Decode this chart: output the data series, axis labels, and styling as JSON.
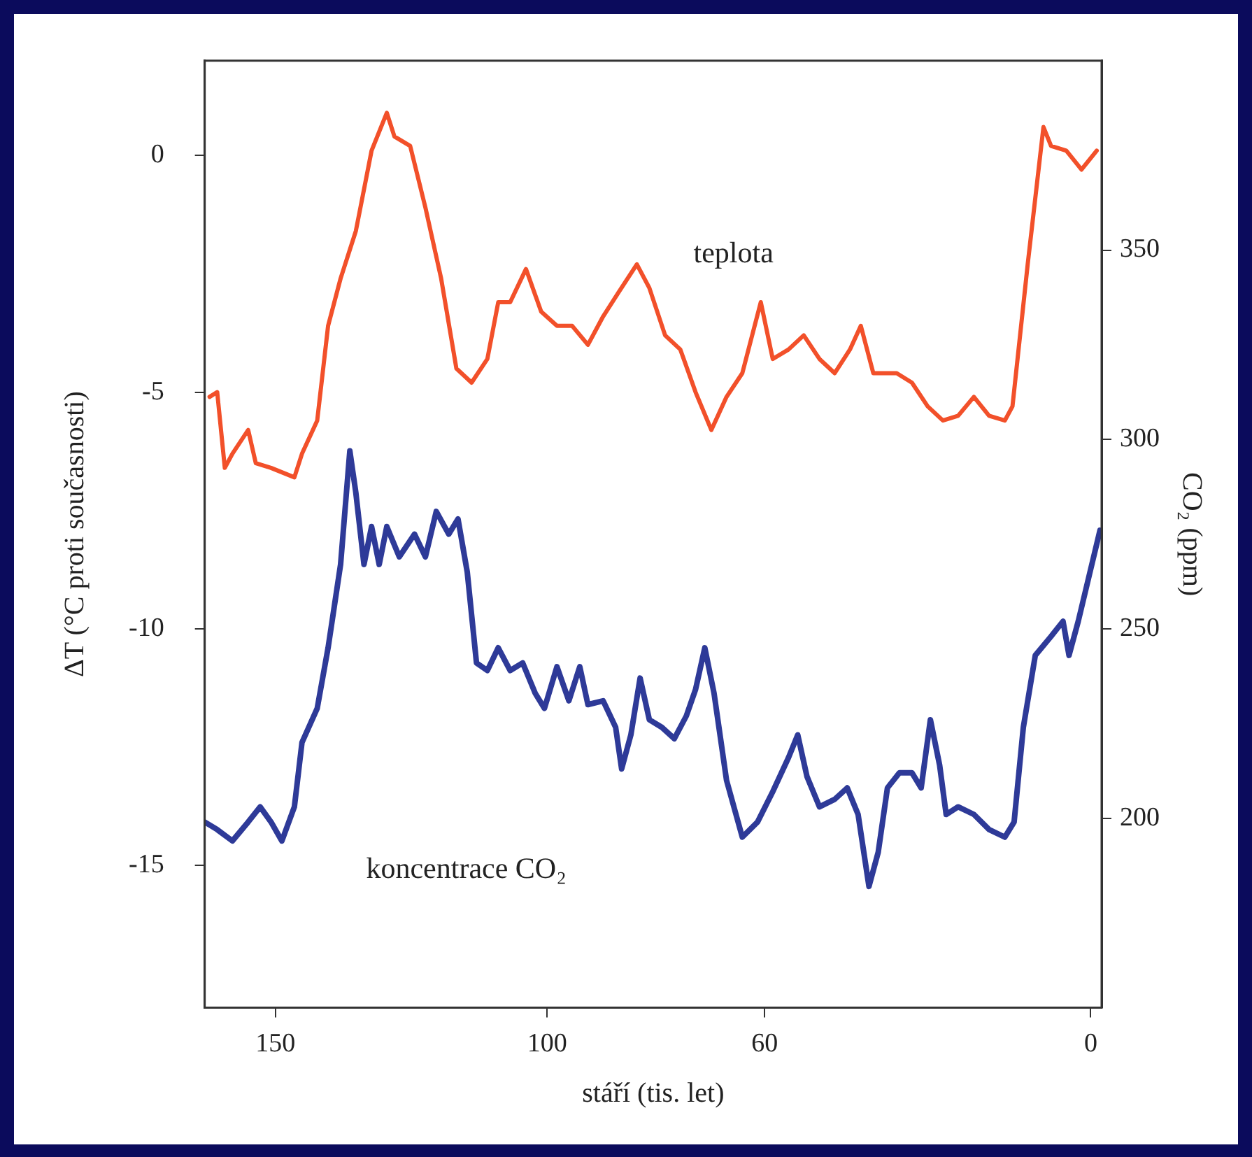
{
  "chart_data": {
    "type": "line",
    "xlabel": "stáří (tis. let)",
    "ylabel": "ΔT (°C proti současnosti)",
    "y2label": "CO₂ (ppm)",
    "xlim": [
      163,
      -2
    ],
    "xticks": [
      150,
      100,
      60,
      0
    ],
    "ylim": [
      -18,
      2
    ],
    "yticks": [
      -15,
      -10,
      -5,
      0
    ],
    "y2lim": [
      150,
      400
    ],
    "y2ticks": [
      200,
      250,
      300,
      350
    ],
    "grid": false,
    "legend": false,
    "marker": "none",
    "line_style": "solid",
    "series": [
      {
        "name": "teplota",
        "color": "#f2502a",
        "x": [
          162.1,
          160.7,
          159.3,
          157.9,
          155.0,
          153.6,
          150.8,
          146.5,
          145.1,
          142.3,
          140.3,
          138.0,
          135.2,
          132.3,
          129.5,
          128.1,
          125.2,
          122.4,
          119.5,
          116.7,
          113.9,
          111.0,
          109.0,
          106.8,
          103.9,
          101.1,
          98.2,
          95.4,
          92.5,
          89.7,
          86.9,
          83.5,
          81.2,
          78.3,
          75.5,
          72.7,
          69.8,
          67.0,
          64.1,
          60.7,
          58.5,
          55.6,
          52.8,
          49.9,
          47.1,
          44.3,
          42.3,
          40.0,
          35.7,
          32.9,
          30.0,
          27.2,
          24.4,
          21.5,
          18.7,
          15.8,
          14.4,
          13.0,
          11.6,
          10.2,
          8.7,
          7.3,
          4.5,
          1.7,
          -1.1
        ],
        "values": [
          -5.1,
          -5.0,
          -6.6,
          -6.3,
          -5.8,
          -6.5,
          -6.6,
          -6.8,
          -6.3,
          -5.6,
          -3.6,
          -2.6,
          -1.6,
          0.1,
          0.9,
          0.4,
          0.2,
          -1.1,
          -2.6,
          -4.5,
          -4.8,
          -4.3,
          -3.1,
          -3.1,
          -2.4,
          -3.3,
          -3.6,
          -3.6,
          -4.0,
          -3.4,
          -2.9,
          -2.3,
          -2.8,
          -3.8,
          -4.1,
          -5.0,
          -5.8,
          -5.1,
          -4.6,
          -3.1,
          -4.3,
          -4.1,
          -3.8,
          -4.3,
          -4.6,
          -4.1,
          -3.6,
          -4.6,
          -4.6,
          -4.8,
          -5.3,
          -5.6,
          -5.5,
          -5.1,
          -5.5,
          -5.6,
          -5.3,
          -3.8,
          -2.3,
          -0.9,
          0.6,
          0.2,
          0.1,
          -0.3,
          0.1
        ]
      },
      {
        "name": "koncentrace CO₂",
        "color": "#2e3a98",
        "axis": "y2",
        "x": [
          163.0,
          160.7,
          157.9,
          155.0,
          152.8,
          150.8,
          148.8,
          146.5,
          145.1,
          142.3,
          140.3,
          138.0,
          136.3,
          135.2,
          133.7,
          132.3,
          130.9,
          129.5,
          127.2,
          124.4,
          122.4,
          120.4,
          118.1,
          116.4,
          114.7,
          113.0,
          111.0,
          109.0,
          106.8,
          104.5,
          102.2,
          100.5,
          98.2,
          96.0,
          94.0,
          92.5,
          89.7,
          87.4,
          86.3,
          84.6,
          82.9,
          81.2,
          78.9,
          76.6,
          74.4,
          72.7,
          71.0,
          69.3,
          67.0,
          64.1,
          61.3,
          58.5,
          55.6,
          53.9,
          52.2,
          49.9,
          47.1,
          44.8,
          42.8,
          40.8,
          39.1,
          37.4,
          35.2,
          32.9,
          31.2,
          29.5,
          27.8,
          26.6,
          24.4,
          21.5,
          18.7,
          15.8,
          14.1,
          12.4,
          10.2,
          7.3,
          5.1,
          4.0,
          2.3,
          0.3,
          -1.7
        ],
        "values": [
          199,
          197,
          194,
          199,
          203,
          199,
          194,
          203,
          220,
          229,
          245,
          267,
          297,
          286,
          267,
          277,
          267,
          277,
          269,
          275,
          269,
          281,
          275,
          279,
          265,
          241,
          239,
          245,
          239,
          241,
          233,
          229,
          240,
          231,
          240,
          230,
          231,
          224,
          213,
          222,
          237,
          226,
          224,
          221,
          227,
          234,
          245,
          233,
          210,
          195,
          199,
          207,
          216,
          222,
          211,
          203,
          205,
          208,
          201,
          182,
          191,
          208,
          212,
          212,
          208,
          226,
          214,
          201,
          203,
          201,
          197,
          195,
          199,
          224,
          243,
          248,
          252,
          243,
          252,
          264,
          276
        ]
      }
    ]
  }
}
